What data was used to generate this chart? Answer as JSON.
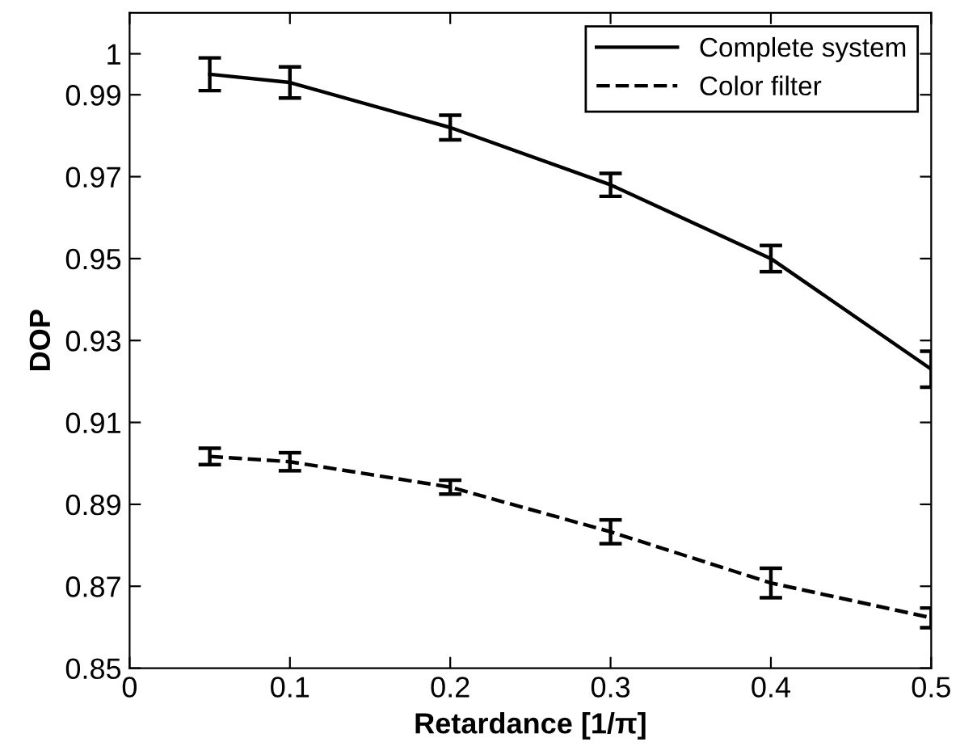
{
  "chart_data": {
    "type": "line",
    "xlabel": "Retardance [1/π]",
    "ylabel": "DOP",
    "x": [
      0.05,
      0.1,
      0.2,
      0.3,
      0.4,
      0.5
    ],
    "series": [
      {
        "name": "Complete system",
        "color": "#000000",
        "line_style": "solid",
        "values": [
          0.995,
          0.993,
          0.982,
          0.968,
          0.95,
          0.923
        ],
        "errors": [
          0.004,
          0.0038,
          0.003,
          0.0028,
          0.0032,
          0.0044
        ]
      },
      {
        "name": "Color filter",
        "color": "#000000",
        "line_style": "dashed",
        "values": [
          0.9017,
          0.9004,
          0.8942,
          0.8833,
          0.8708,
          0.8623
        ],
        "errors": [
          0.002,
          0.0022,
          0.0017,
          0.0029,
          0.0036,
          0.0024
        ]
      }
    ],
    "xlim": [
      0,
      0.5
    ],
    "xticks": [
      0,
      0.1,
      0.2,
      0.3,
      0.4,
      0.5
    ],
    "ylim": [
      0.85,
      1.01
    ],
    "yticks": [
      0.85,
      0.87,
      0.89,
      0.91,
      0.93,
      0.95,
      0.97,
      0.99,
      1
    ],
    "grid": false,
    "legend": "top right",
    "marker": "none"
  }
}
